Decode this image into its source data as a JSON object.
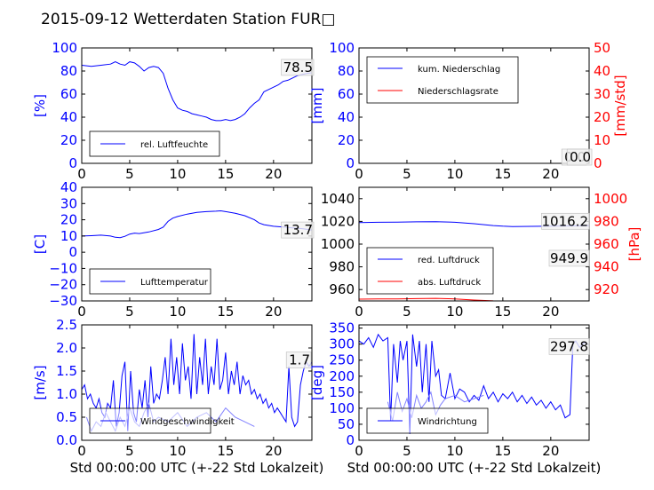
{
  "figure_title": "2015-09-12 Wetterdaten Station FUR□",
  "colors": {
    "blue": "#0000ff",
    "red": "#ff0000",
    "lightblue": "#8080ff",
    "black": "#000000"
  },
  "chart_data": [
    {
      "id": "humidity",
      "type": "line",
      "xlim": [
        0,
        24
      ],
      "ylim": [
        0,
        100
      ],
      "xticks": [
        "0",
        "5",
        "10",
        "15",
        "20"
      ],
      "yticks": [
        "0",
        "20",
        "40",
        "60",
        "80",
        "100"
      ],
      "ylabel": "[%]",
      "legend": {
        "placement": "lower-left",
        "entries": [
          {
            "label": "rel. Luftfeuchte",
            "color": "#0000ff"
          }
        ]
      },
      "annotation": "78.5",
      "series": [
        {
          "name": "rel. Luftfeuchte",
          "color": "#0000ff",
          "x": [
            0,
            1,
            2,
            3,
            3.5,
            4,
            4.5,
            5,
            5.5,
            6,
            6.5,
            7,
            7.5,
            8,
            8.5,
            9,
            9.5,
            10,
            10.5,
            11,
            11.5,
            12,
            12.5,
            13,
            13.5,
            14,
            14.5,
            15,
            15.5,
            16,
            16.5,
            17,
            17.5,
            18,
            18.5,
            19,
            19.5,
            20,
            20.5,
            21,
            21.5,
            22,
            22.5,
            23,
            23.5,
            24
          ],
          "y": [
            85,
            84,
            85,
            86,
            88,
            86,
            85,
            88,
            87,
            84,
            80,
            83,
            84,
            83,
            78,
            65,
            55,
            48,
            46,
            45,
            43,
            42,
            41,
            40,
            38,
            37,
            37,
            38,
            37,
            38,
            40,
            43,
            48,
            52,
            55,
            62,
            64,
            66,
            68,
            71,
            72,
            74,
            76,
            77,
            78,
            78.5
          ]
        }
      ]
    },
    {
      "id": "precipitation",
      "type": "line",
      "xlim": [
        0,
        24
      ],
      "ylim": [
        0,
        100
      ],
      "y2lim": [
        0,
        50
      ],
      "xticks": [
        "0",
        "5",
        "10",
        "15",
        "20"
      ],
      "yticks": [
        "0",
        "20",
        "40",
        "60",
        "80",
        "100"
      ],
      "y2ticks": [
        "0",
        "10",
        "20",
        "30",
        "40",
        "50"
      ],
      "ylabel": "[mm]",
      "y2label": "[mm/std]",
      "legend": {
        "placement": "upper-left",
        "entries": [
          {
            "label": "kum. Niederschlag",
            "color": "#0000ff"
          },
          {
            "label": "Niederschlagsrate",
            "color": "#ff0000"
          }
        ]
      },
      "annotations": [
        "0.0",
        "0.0"
      ],
      "series": [
        {
          "name": "kum. Niederschlag",
          "color": "#0000ff",
          "x": [
            0,
            24
          ],
          "y": [
            0,
            0
          ]
        },
        {
          "name": "Niederschlagsrate",
          "color": "#ff0000",
          "x": [
            0,
            24
          ],
          "y": [
            0,
            0
          ]
        }
      ]
    },
    {
      "id": "temperature",
      "type": "line",
      "xlim": [
        0,
        24
      ],
      "ylim": [
        -30,
        40
      ],
      "xticks": [
        "0",
        "5",
        "10",
        "15",
        "20"
      ],
      "yticks": [
        "−30",
        "−20",
        "−10",
        "0",
        "10",
        "20",
        "30",
        "40"
      ],
      "ylabel": "[C]",
      "legend": {
        "placement": "lower-left",
        "entries": [
          {
            "label": "Lufttemperatur",
            "color": "#0000ff"
          }
        ]
      },
      "annotation": "13.7",
      "series": [
        {
          "name": "Lufttemperatur",
          "color": "#0000ff",
          "x": [
            0,
            1,
            2,
            3,
            3.5,
            4,
            4.5,
            5,
            5.5,
            6,
            7,
            8,
            8.5,
            9,
            9.5,
            10,
            11,
            12,
            13,
            14,
            14.5,
            15,
            16,
            17,
            18,
            18.5,
            19,
            20,
            21,
            22,
            23,
            24
          ],
          "y": [
            10,
            10.2,
            10.5,
            10,
            9.2,
            9,
            9.8,
            11.2,
            11.8,
            11.5,
            12.5,
            14,
            15.5,
            19,
            21,
            22,
            23.5,
            24.5,
            25,
            25.3,
            25.5,
            25,
            24,
            22.5,
            20,
            18,
            17,
            16,
            15.5,
            15,
            14.5,
            13.7
          ]
        }
      ]
    },
    {
      "id": "pressure",
      "type": "line",
      "xlim": [
        0,
        24
      ],
      "ylim": [
        950,
        1050
      ],
      "y2lim": [
        910,
        1010
      ],
      "xticks": [
        "0",
        "5",
        "10",
        "15",
        "20"
      ],
      "yticks": [
        "960",
        "980",
        "1000",
        "1020",
        "1040"
      ],
      "y2ticks": [
        "920",
        "940",
        "960",
        "980",
        "1000"
      ],
      "y2label": "[hPa]",
      "legend": {
        "placement": "lower-left",
        "entries": [
          {
            "label": "red. Luftdruck",
            "color": "#0000ff"
          },
          {
            "label": "abs. Luftdruck",
            "color": "#ff0000"
          }
        ]
      },
      "annotations": [
        "1016.2",
        "949.9"
      ],
      "series": [
        {
          "name": "red. Luftdruck",
          "color": "#0000ff",
          "x": [
            0,
            2,
            4,
            6,
            8,
            10,
            12,
            14,
            15,
            16,
            18,
            20,
            22,
            24
          ],
          "y": [
            1019,
            1019.2,
            1019.4,
            1019.6,
            1019.8,
            1019.2,
            1018,
            1016.3,
            1015.8,
            1015.5,
            1015.6,
            1015.8,
            1016,
            1016.2
          ]
        },
        {
          "name": "abs. Luftdruck",
          "color": "#ff0000",
          "x": [
            0,
            2,
            4,
            6,
            8,
            10,
            12,
            14,
            15,
            16,
            18,
            20,
            22,
            24
          ],
          "y": [
            951.6,
            951.7,
            951.8,
            952,
            952.3,
            951.8,
            950.8,
            950.1,
            949.9,
            949.8,
            949.7,
            949.8,
            949.9,
            949.9
          ]
        }
      ]
    },
    {
      "id": "windspeed",
      "type": "line",
      "xlim": [
        0,
        24
      ],
      "ylim": [
        0,
        2.5
      ],
      "xticks": [
        "0",
        "5",
        "10",
        "15",
        "20"
      ],
      "yticks": [
        "0.0",
        "0.5",
        "1.0",
        "1.5",
        "2.0",
        "2.5"
      ],
      "xlabel": "Std 00:00:00 UTC (+-22 Std Lokalzeit)",
      "ylabel": "[m/s]",
      "legend": {
        "placement": "lower-left",
        "entries": [
          {
            "label": "Windgeschwindigkeit",
            "color": "#0000ff"
          }
        ]
      },
      "annotation": "1.7",
      "series": [
        {
          "name": "Windgeschwindigkeit",
          "color": "#0000ff",
          "x": [
            0,
            0.3,
            0.6,
            0.9,
            1.2,
            1.5,
            1.8,
            2.1,
            2.4,
            2.7,
            3,
            3.3,
            3.6,
            3.9,
            4.2,
            4.5,
            4.8,
            5.1,
            5.4,
            5.7,
            6,
            6.3,
            6.6,
            6.9,
            7.2,
            7.5,
            7.8,
            8.1,
            8.4,
            8.7,
            9,
            9.3,
            9.6,
            9.9,
            10.2,
            10.5,
            10.8,
            11.1,
            11.4,
            11.7,
            12,
            12.3,
            12.6,
            12.9,
            13.2,
            13.5,
            13.8,
            14.1,
            14.4,
            14.7,
            15,
            15.3,
            15.6,
            15.9,
            16.2,
            16.5,
            16.8,
            17.1,
            17.4,
            17.7,
            18,
            18.3,
            18.6,
            18.9,
            19.2,
            19.5,
            19.8,
            20.1,
            20.4,
            20.7,
            21,
            21.3,
            21.6,
            21.9,
            22.2,
            22.5,
            22.8,
            23.1,
            23.4,
            23.7,
            24
          ],
          "y": [
            1.1,
            1.2,
            0.9,
            1.0,
            0.8,
            0.7,
            0.9,
            0.6,
            0.5,
            0.8,
            0.7,
            1.3,
            0.3,
            0.6,
            1.4,
            1.7,
            0.2,
            1.5,
            0.6,
            0.4,
            1.1,
            0.7,
            1.3,
            0.5,
            1.6,
            0.8,
            1.0,
            0.9,
            1.3,
            1.8,
            1.0,
            2.2,
            1.2,
            1.8,
            1.0,
            2.1,
            1.3,
            1.6,
            0.9,
            2.3,
            1.0,
            1.8,
            1.2,
            2.2,
            1.0,
            1.6,
            1.2,
            2.2,
            1.1,
            1.3,
            1.9,
            1.0,
            1.5,
            1.2,
            1.7,
            1.0,
            1.4,
            1.2,
            1.3,
            1.0,
            1.1,
            0.9,
            1.0,
            0.8,
            0.9,
            0.7,
            0.8,
            0.6,
            0.7,
            0.6,
            0.5,
            0.4,
            1.6,
            0.5,
            0.3,
            0.4,
            1.2,
            1.5,
            1.7,
            1.6,
            1.7
          ]
        },
        {
          "name": "",
          "color": "#8080ff",
          "x": [
            0.5,
            1,
            1.5,
            2,
            2.5,
            3,
            3.5,
            4,
            4.5,
            5,
            5.5,
            6,
            6.5,
            7,
            7.5,
            8,
            9,
            10,
            11,
            12,
            13,
            14,
            15,
            16,
            17,
            18
          ],
          "y": [
            0.5,
            0.2,
            0.4,
            0.3,
            0.6,
            0.4,
            0.2,
            0.5,
            0.3,
            0.7,
            0.4,
            0.3,
            0.6,
            0.8,
            0.4,
            0.5,
            0.4,
            0.6,
            0.3,
            0.5,
            0.6,
            0.4,
            0.7,
            0.5,
            0.4,
            0.3
          ]
        }
      ]
    },
    {
      "id": "winddirection",
      "type": "line",
      "xlim": [
        0,
        24
      ],
      "ylim": [
        0,
        360
      ],
      "xticks": [
        "0",
        "5",
        "10",
        "15",
        "20"
      ],
      "yticks": [
        "0",
        "50",
        "100",
        "150",
        "200",
        "250",
        "300",
        "350"
      ],
      "xlabel": "Std 00:00:00 UTC (+-22 Std Lokalzeit)",
      "ylabel": "[deg]",
      "legend": {
        "placement": "lower-left",
        "entries": [
          {
            "label": "Windrichtung",
            "color": "#0000ff"
          }
        ]
      },
      "annotation": "297.8",
      "series": [
        {
          "name": "Windrichtung",
          "color": "#0000ff",
          "x": [
            0,
            0.5,
            1,
            1.5,
            2,
            2.5,
            3,
            3.3,
            3.6,
            4,
            4.3,
            4.6,
            5,
            5.3,
            5.6,
            6,
            6.3,
            6.6,
            7,
            7.3,
            7.6,
            8,
            8.3,
            8.6,
            9,
            9.5,
            10,
            10.5,
            11,
            11.5,
            12,
            12.5,
            13,
            13.5,
            14,
            14.5,
            15,
            15.5,
            16,
            16.5,
            17,
            17.5,
            18,
            18.5,
            19,
            19.5,
            20,
            20.5,
            21,
            21.5,
            22,
            22.3,
            22.6,
            23,
            23.5,
            24
          ],
          "y": [
            310,
            300,
            320,
            290,
            330,
            310,
            320,
            60,
            300,
            180,
            310,
            250,
            310,
            20,
            330,
            230,
            310,
            150,
            300,
            120,
            310,
            200,
            220,
            140,
            130,
            210,
            130,
            160,
            150,
            120,
            140,
            125,
            170,
            130,
            150,
            120,
            145,
            130,
            150,
            120,
            140,
            115,
            135,
            110,
            125,
            100,
            120,
            95,
            110,
            70,
            80,
            300,
            310,
            290,
            305,
            298
          ]
        },
        {
          "name": "",
          "color": "#8080ff",
          "x": [
            3,
            3.5,
            4,
            4.5,
            5,
            5.5,
            6,
            6.5,
            7,
            7.5,
            8,
            8.5,
            9,
            10,
            11,
            12,
            13
          ],
          "y": [
            120,
            60,
            150,
            90,
            130,
            70,
            140,
            100,
            120,
            150,
            80,
            110,
            130,
            140,
            120,
            130,
            140
          ]
        }
      ]
    }
  ]
}
